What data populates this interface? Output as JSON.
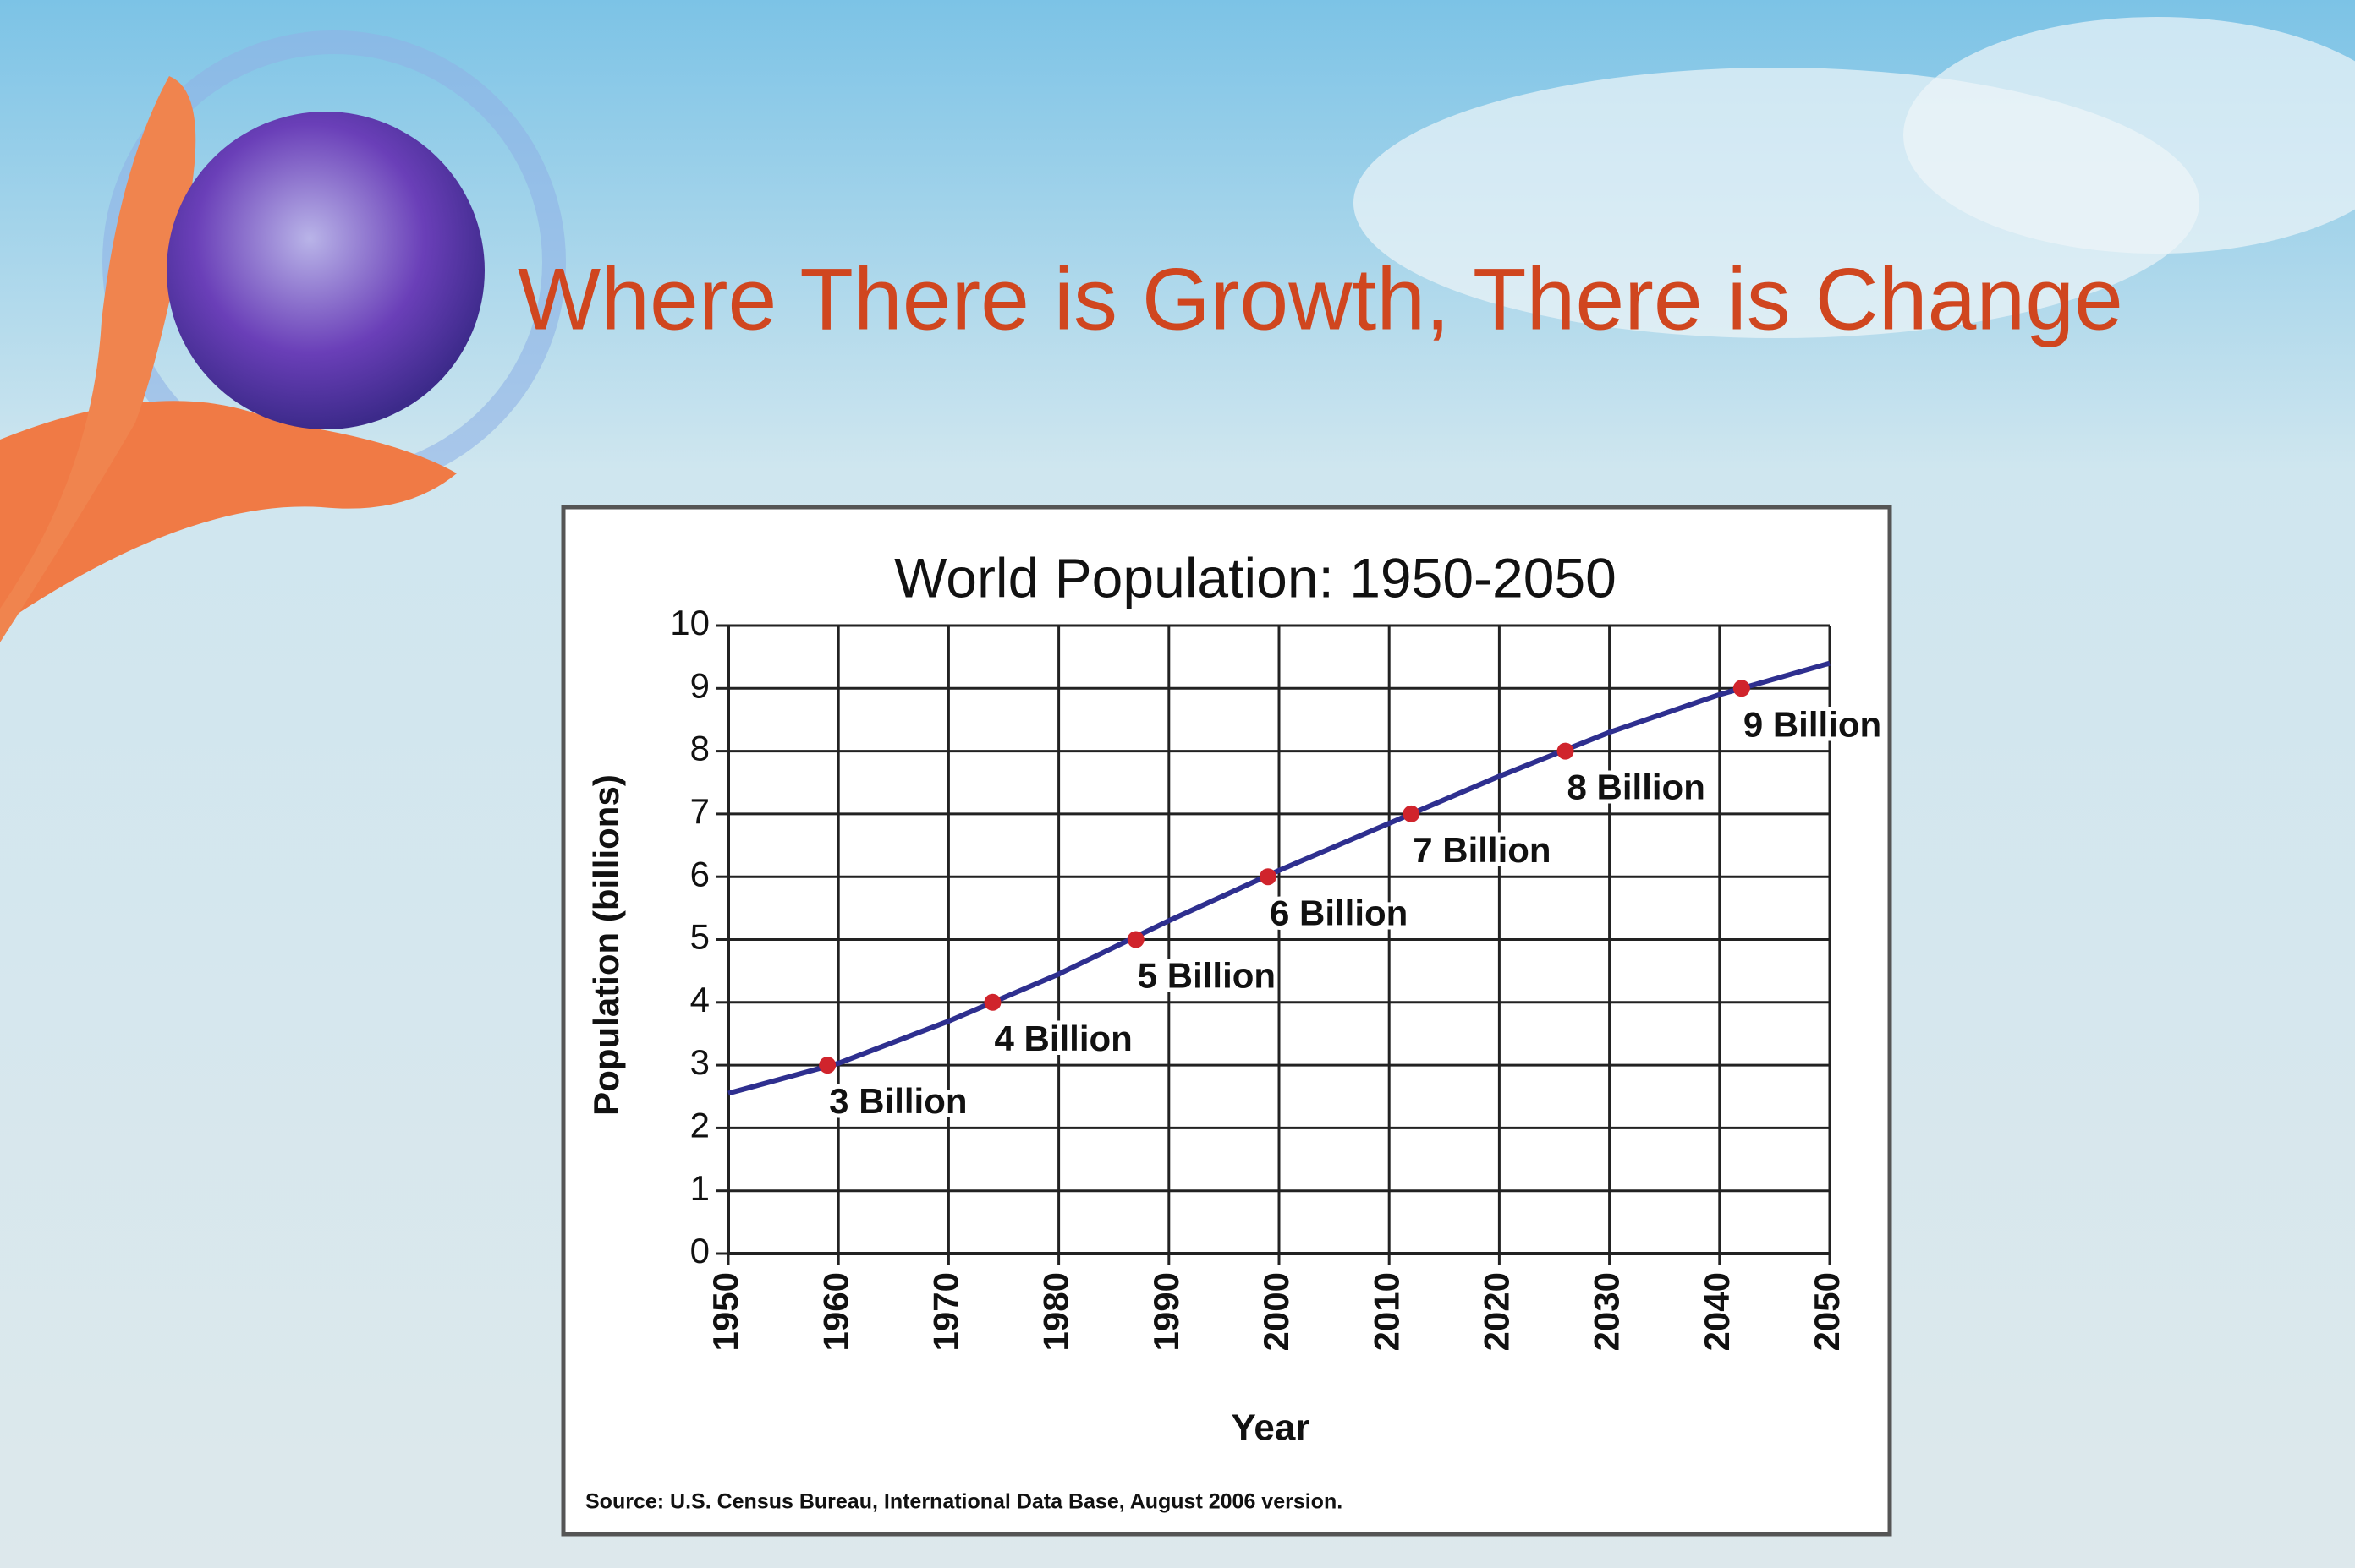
{
  "slide": {
    "title": "Where There is Growth, There is Change"
  },
  "chart_data": {
    "type": "line",
    "title": "World Population: 1950-2050",
    "xlabel": "Year",
    "ylabel": "Population (billions)",
    "source": "Source: U.S. Census Bureau, International Data Base, August 2006 version.",
    "x": [
      1950,
      1960,
      1970,
      1980,
      1990,
      2000,
      2010,
      2020,
      2030,
      2040,
      2050
    ],
    "series": [
      {
        "color": "#2e2f8f",
        "values": [
          2.55,
          3.03,
          3.7,
          4.45,
          5.3,
          6.1,
          6.85,
          7.6,
          8.3,
          8.9,
          9.4
        ]
      }
    ],
    "markers": {
      "color": "#d0242c",
      "x": [
        1959,
        1974,
        1987,
        1999,
        2012,
        2026,
        2042
      ],
      "values": [
        3,
        4,
        5,
        6,
        7,
        8,
        9
      ],
      "value_labels": [
        "3 Billion",
        "4 Billion",
        "5 Billion",
        "6 Billion",
        "7 Billion",
        "8 Billion",
        "9 Billion"
      ]
    },
    "xlim": [
      1950,
      2050
    ],
    "ylim": [
      0,
      10
    ],
    "xticks": [
      1950,
      1960,
      1970,
      1980,
      1990,
      2000,
      2010,
      2020,
      2030,
      2040,
      2050
    ],
    "yticks": [
      0,
      1,
      2,
      3,
      4,
      5,
      6,
      7,
      8,
      9,
      10
    ],
    "grid": true
  }
}
